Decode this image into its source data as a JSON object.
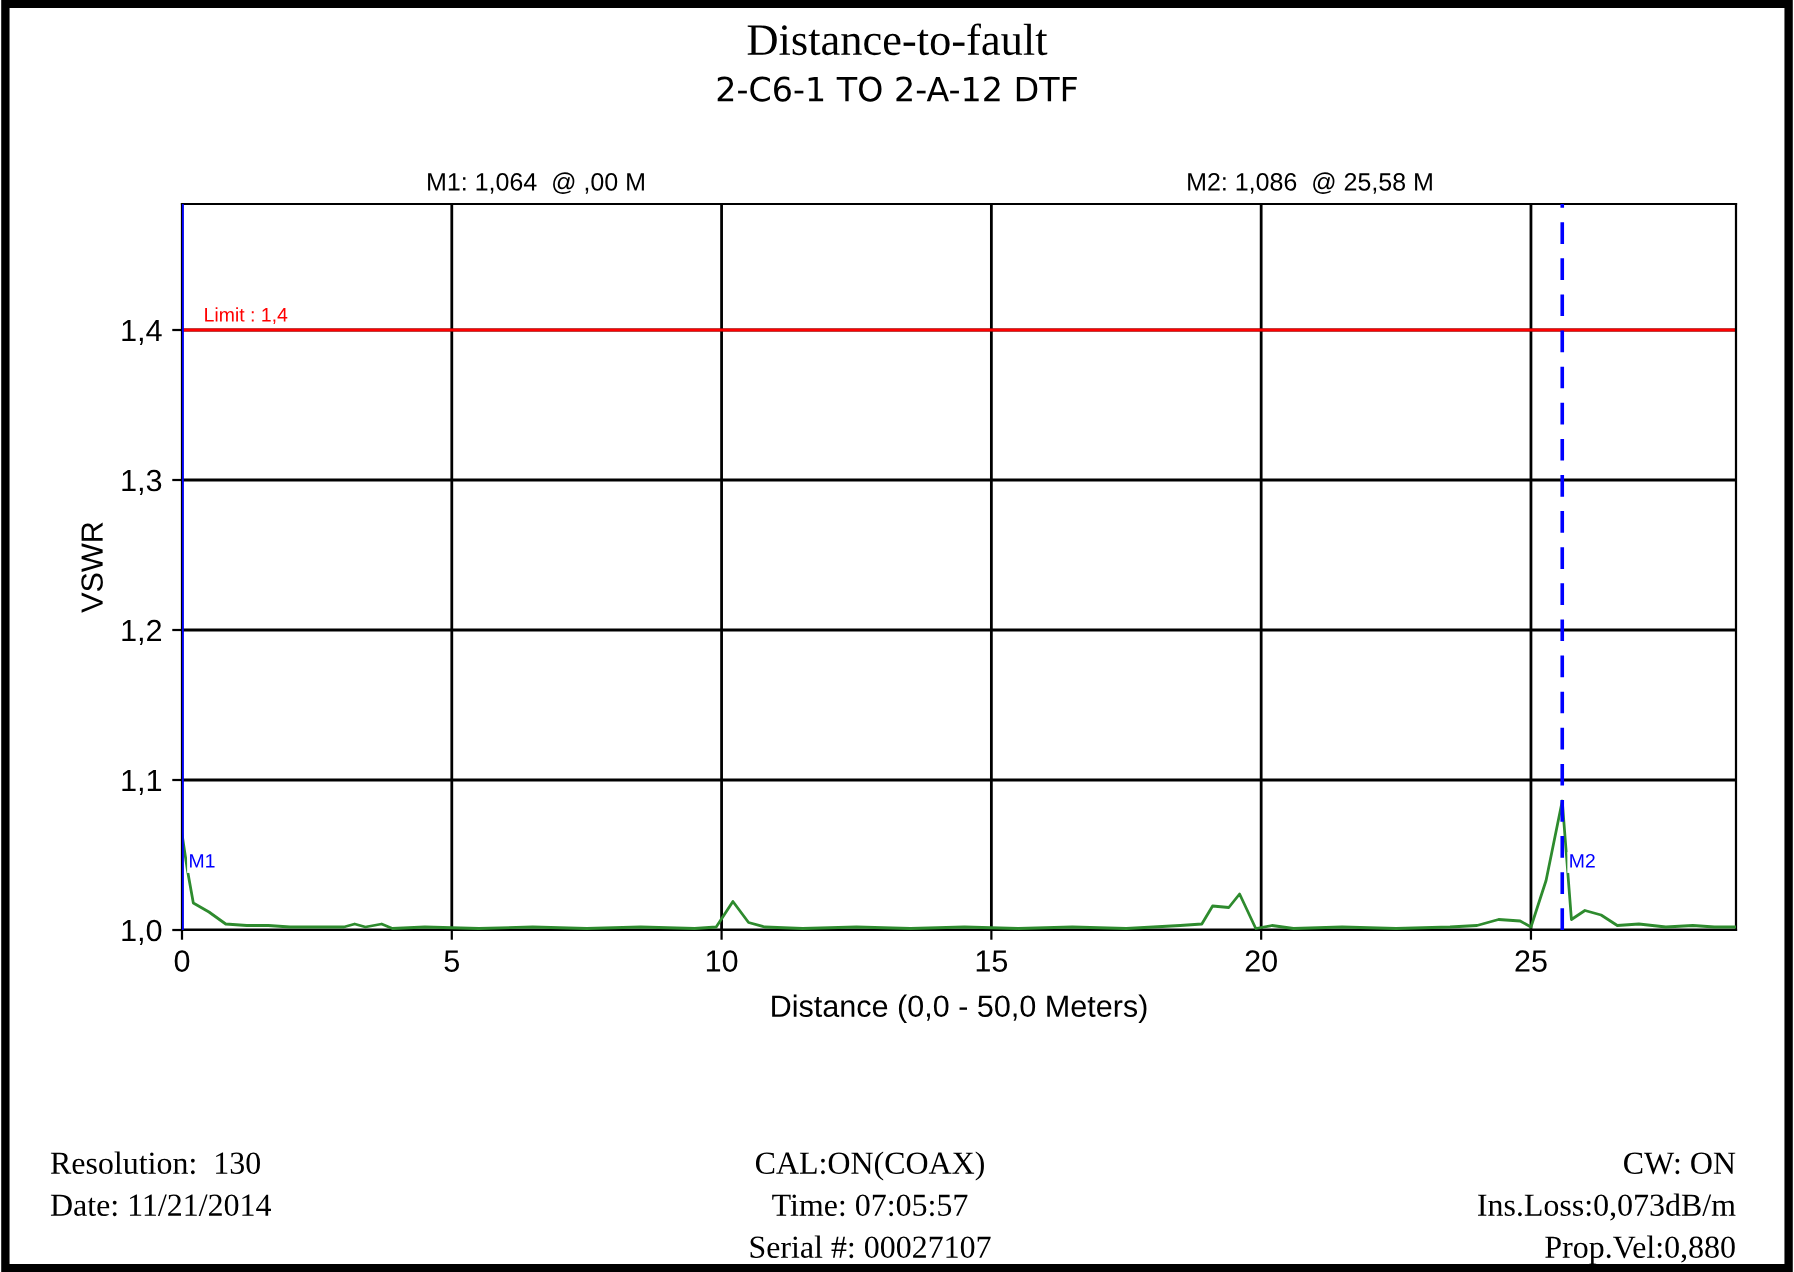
{
  "chart_data": {
    "type": "line",
    "title": "Distance-to-fault",
    "subtitle": "2-C6-1 TO 2-A-12 DTF",
    "xlabel": "Distance (0,0 - 50,0 Meters)",
    "ylabel": "VSWR",
    "x": [
      0,
      0.1,
      0.21,
      0.5,
      0.81,
      1.2,
      1.6,
      2.0,
      2.5,
      3.0,
      3.2,
      3.4,
      3.7,
      3.9,
      4.5,
      5.5,
      6.5,
      7.5,
      8.5,
      9.5,
      9.9,
      10.21,
      10.5,
      10.8,
      11.5,
      12.5,
      13.5,
      14.5,
      15.5,
      16.5,
      17.5,
      18.5,
      18.9,
      19.1,
      19.4,
      19.6,
      19.9,
      20.2,
      20.6,
      21.5,
      22.5,
      23.5,
      24.0,
      24.4,
      24.8,
      25.0,
      25.28,
      25.58,
      25.75,
      26.0,
      26.3,
      26.6,
      27.0,
      27.5,
      28.0,
      28.4,
      28.8
    ],
    "series": [
      {
        "color": "#2e8b2e",
        "values": [
          1.064,
          1.04,
          1.018,
          1.012,
          1.004,
          1.003,
          1.003,
          1.002,
          1.002,
          1.002,
          1.004,
          1.002,
          1.004,
          1.001,
          1.002,
          1.001,
          1.002,
          1.001,
          1.002,
          1.001,
          1.002,
          1.019,
          1.005,
          1.002,
          1.001,
          1.002,
          1.001,
          1.002,
          1.001,
          1.002,
          1.001,
          1.003,
          1.004,
          1.016,
          1.015,
          1.024,
          1.001,
          1.003,
          1.001,
          1.002,
          1.001,
          1.002,
          1.003,
          1.007,
          1.006,
          1.002,
          1.033,
          1.086,
          1.007,
          1.013,
          1.01,
          1.003,
          1.004,
          1.002,
          1.003,
          1.002,
          1.002
        ]
      }
    ],
    "xlim": [
      0,
      28.8
    ],
    "xticks": [
      0,
      5,
      10,
      15,
      20,
      25
    ],
    "ylim": [
      1.0,
      1.484
    ],
    "yticks": [
      {
        "value": 1.0,
        "label": "1,0"
      },
      {
        "value": 1.1,
        "label": "1,1"
      },
      {
        "value": 1.2,
        "label": "1,2"
      },
      {
        "value": 1.3,
        "label": "1,3"
      },
      {
        "value": 1.4,
        "label": "1,4"
      }
    ],
    "grid": true,
    "marker": "none",
    "line_style": "solid",
    "ref_lines": [
      {
        "axis": "y",
        "value": 1.4,
        "label": "Limit : 1,4",
        "color": "#ff0000",
        "line_style": "solid"
      },
      {
        "axis": "x",
        "value": 0,
        "label": "M1",
        "color": "#0000ff",
        "line_style": "solid"
      },
      {
        "axis": "x",
        "value": 25.58,
        "label": "M2",
        "color": "#0000ff",
        "line_style": "dashed"
      }
    ],
    "annotations": [
      "M1: 1,064  @ ,00 M",
      "M2: 1,086  @ 25,58 M",
      "Resolution:  130",
      "Date: 11/21/2014",
      "CAL:ON(COAX)",
      "Time: 07:05:57",
      "Serial #: 00027107",
      "CW: ON",
      "Ins.Loss:0,073dB/m",
      "Prop.Vel:0,880"
    ]
  }
}
